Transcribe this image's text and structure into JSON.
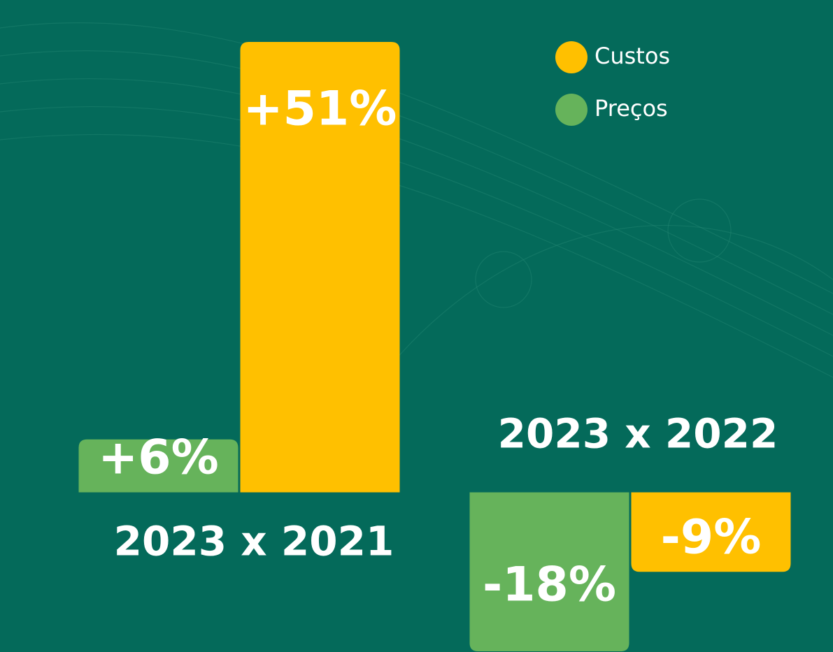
{
  "chart_data": {
    "type": "bar",
    "categories": [
      "2023 x 2021",
      "2023 x 2022"
    ],
    "series": [
      {
        "name": "Custos",
        "color": "#ffc000",
        "values": [
          51,
          -9
        ],
        "value_labels": [
          "+51%",
          "-9%"
        ]
      },
      {
        "name": "Preços",
        "color": "#66b35b",
        "values": [
          6,
          -18
        ],
        "value_labels": [
          "+6%",
          "-18%"
        ]
      }
    ],
    "legend": "top-right"
  }
}
